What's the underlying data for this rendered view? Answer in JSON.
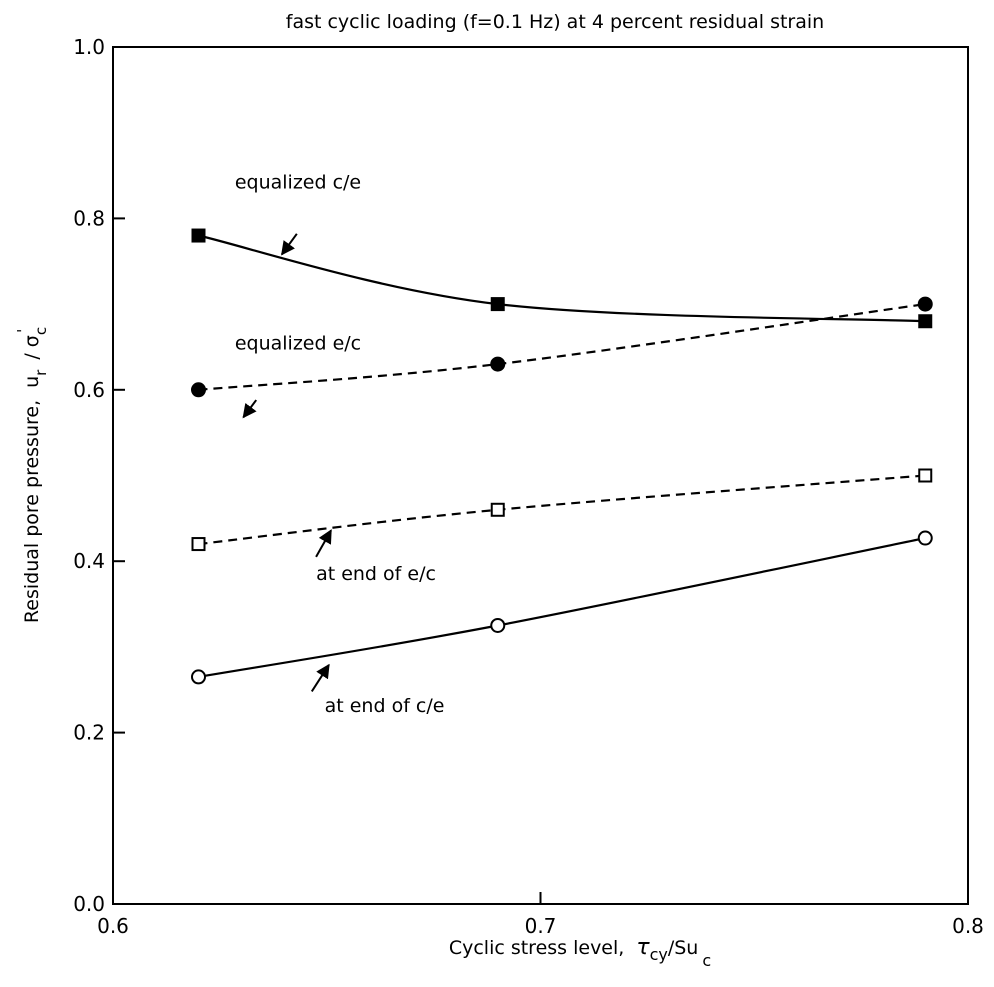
{
  "chart_data": {
    "type": "line",
    "title": "fast cyclic loading (f=0.1 Hz) at 4 percent residual strain",
    "xlabel": "Cyclic stress level,",
    "xlabel_symbol": "τ",
    "xlabel_sub": "cy",
    "xlabel_tail": "/Su",
    "xlabel_tail_sub": "c",
    "ylabel": "Residual pore pressure,",
    "ylabel_u": "u",
    "ylabel_u_sub": "r",
    "ylabel_sigma": "/ σ",
    "ylabel_sigma_sub": "c",
    "ylabel_sigma_prime": "'",
    "xlim": [
      0.6,
      0.8
    ],
    "ylim": [
      0.0,
      1.0
    ],
    "x_ticks": [
      0.6,
      0.7,
      0.8
    ],
    "x_tick_labels": [
      "0.6",
      "0.7",
      "0.8"
    ],
    "y_ticks": [
      0.0,
      0.2,
      0.4,
      0.6,
      0.8,
      1.0
    ],
    "y_tick_labels": [
      "0.0",
      "0.2",
      "0.4",
      "0.6",
      "0.8",
      "1.0"
    ],
    "grid": false,
    "series": [
      {
        "name": "equalized c/e",
        "marker": "filled-square",
        "line": "solid",
        "x": [
          0.62,
          0.69,
          0.79
        ],
        "y": [
          0.78,
          0.7,
          0.68
        ]
      },
      {
        "name": "equalized e/c",
        "marker": "filled-circle",
        "line": "dashed",
        "x": [
          0.62,
          0.69,
          0.79
        ],
        "y": [
          0.6,
          0.63,
          0.7
        ]
      },
      {
        "name": "at end of e/c",
        "marker": "open-square",
        "line": "dashed",
        "x": [
          0.62,
          0.69,
          0.79
        ],
        "y": [
          0.42,
          0.46,
          0.5
        ]
      },
      {
        "name": "at end of c/e",
        "marker": "open-circle",
        "line": "solid",
        "x": [
          0.62,
          0.69,
          0.79
        ],
        "y": [
          0.265,
          0.325,
          0.427
        ]
      }
    ],
    "annotations": [
      {
        "text": "equalized c/e",
        "x": 0.6285,
        "y": 0.835,
        "arrow_from": [
          0.643,
          0.782
        ],
        "arrow_to": [
          0.6395,
          0.758
        ]
      },
      {
        "text": "equalized e/c",
        "x": 0.6285,
        "y": 0.647,
        "arrow_from": [
          0.6335,
          0.588
        ],
        "arrow_to": [
          0.6305,
          0.568
        ]
      },
      {
        "text": "at end of e/c",
        "x": 0.6475,
        "y": 0.378,
        "arrow_from": [
          0.6475,
          0.405
        ],
        "arrow_to": [
          0.651,
          0.436
        ]
      },
      {
        "text": "at end of c/e",
        "x": 0.6495,
        "y": 0.224,
        "arrow_from": [
          0.6465,
          0.248
        ],
        "arrow_to": [
          0.6505,
          0.279
        ]
      }
    ]
  }
}
